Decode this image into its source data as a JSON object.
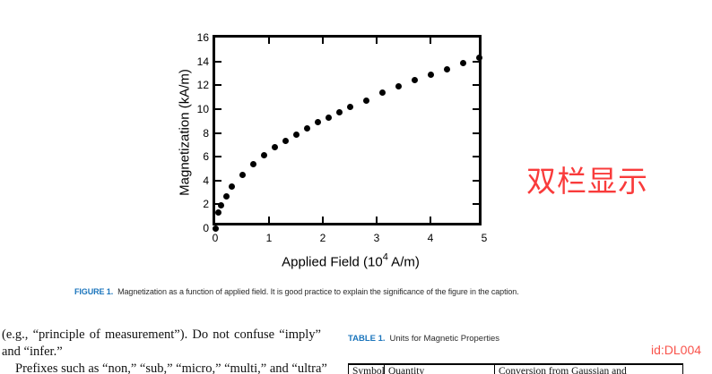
{
  "colors": {
    "caption_blue": "#1b75bc",
    "annotation_red": "#f93b3b",
    "id_red": "#f9544c",
    "ink": "#000000"
  },
  "chart_data": {
    "type": "scatter",
    "title": "",
    "xlabel": "Applied Field (10^4 A/m)",
    "xlabel_parts": {
      "pre": "Applied Field (10",
      "sup": "4",
      "post": " A/m)"
    },
    "ylabel": "Magnetization (kA/m)",
    "xlim": [
      0,
      5
    ],
    "ylim": [
      0,
      16
    ],
    "xticks": [
      0,
      1,
      2,
      3,
      4,
      5
    ],
    "yticks": [
      0,
      2,
      4,
      6,
      8,
      10,
      12,
      14,
      16
    ],
    "grid": false,
    "legend": false,
    "marker": "filled-circle",
    "marker_color": "#000000",
    "points": [
      [
        0,
        0
      ],
      [
        0.05,
        1.35
      ],
      [
        0.1,
        1.95
      ],
      [
        0.2,
        2.7
      ],
      [
        0.3,
        3.5
      ],
      [
        0.5,
        4.5
      ],
      [
        0.7,
        5.4
      ],
      [
        0.9,
        6.1
      ],
      [
        1.1,
        6.8
      ],
      [
        1.3,
        7.3
      ],
      [
        1.5,
        7.85
      ],
      [
        1.7,
        8.4
      ],
      [
        1.9,
        8.9
      ],
      [
        2.1,
        9.3
      ],
      [
        2.3,
        9.7
      ],
      [
        2.5,
        10.2
      ],
      [
        2.8,
        10.7
      ],
      [
        3.1,
        11.4
      ],
      [
        3.4,
        11.9
      ],
      [
        3.7,
        12.4
      ],
      [
        4.0,
        12.85
      ],
      [
        4.3,
        13.3
      ],
      [
        4.6,
        13.85
      ],
      [
        4.9,
        14.3
      ]
    ]
  },
  "figure_caption": {
    "label": "FIGURE 1.",
    "text": "Magnetization as a function of applied field. It is good practice to explain the significance of the figure in the caption."
  },
  "annotations": {
    "overlay_text": "双栏显示",
    "id_text": "id:DL004"
  },
  "left_column": {
    "lines": [
      "(e.g., “principle of measurement”). Do not confuse “imply”",
      "and “infer.”",
      "Prefixes such as “non,” “sub,” “micro,” “multi,” and “ultra”"
    ]
  },
  "table": {
    "caption_label": "TABLE 1.",
    "caption_text": "Units for Magnetic Properties",
    "headers": [
      "Symbol",
      "Quantity",
      "Conversion from Gaussian and"
    ]
  }
}
